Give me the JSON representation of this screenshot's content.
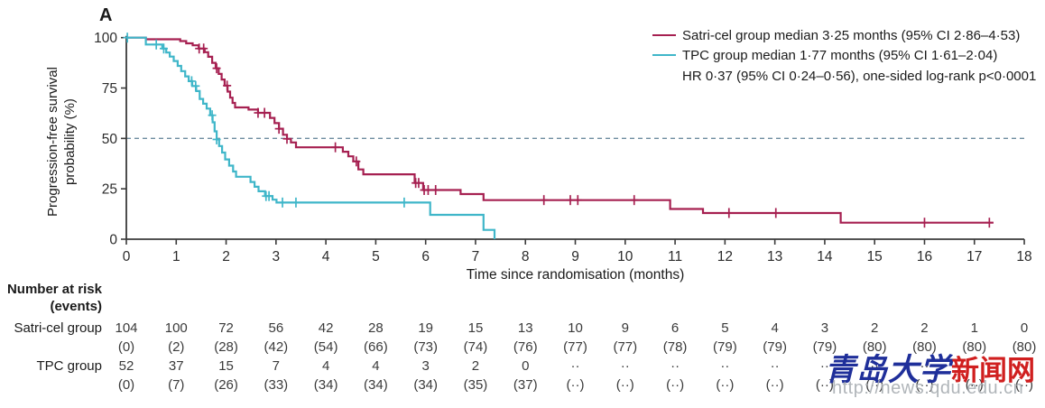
{
  "panel_label": "A",
  "legend": {
    "satri_label": "Satri-cel group median 3·25 months (95% CI 2·86–4·53)",
    "tpc_label": "TPC group median 1·77 months (95% CI 1·61–2·04)",
    "hr_note": "HR 0·37 (95% CI 0·24–0·56), one-sided log-rank p<0·0001"
  },
  "axes": {
    "y_title_line1": "Progression-free survival",
    "y_title_line2": "probability (%)",
    "x_title": "Time since randomisation (months)"
  },
  "colors": {
    "satri": "#A62051",
    "tpc": "#3FB6C9",
    "dashed_line": "#6E8CA0",
    "axis": "#3A3A3A",
    "watermark_blue": "#1F2F9A",
    "watermark_red": "#D01F1F",
    "watermark_url": "#A8ADB2"
  },
  "chart_data": {
    "type": "line",
    "subtype": "kaplan-meier-step",
    "title": "",
    "xlabel": "Time since randomisation (months)",
    "ylabel": "Progression-free survival probability (%)",
    "xlim": [
      0,
      18
    ],
    "ylim": [
      0,
      100
    ],
    "x_ticks": [
      0,
      1,
      2,
      3,
      4,
      5,
      6,
      7,
      8,
      9,
      10,
      11,
      12,
      13,
      14,
      15,
      16,
      17,
      18
    ],
    "y_ticks": [
      0,
      25,
      50,
      75,
      100
    ],
    "grid": false,
    "legend_position": "top-right",
    "reference_line_y": 50,
    "hr_annotation": "HR 0·37 (95% CI 0·24–0·56), one-sided log-rank p<0·0001",
    "series": [
      {
        "name": "Satri-cel group",
        "median_months": "3·25",
        "ci_95": "2·86–4·53",
        "color": "#A62051",
        "end_t": 17.38,
        "steps": [
          [
            0,
            100
          ],
          [
            0.39,
            99.2
          ],
          [
            1.08,
            98.3
          ],
          [
            1.2,
            97.2
          ],
          [
            1.33,
            96.2
          ],
          [
            1.45,
            94.6
          ],
          [
            1.57,
            92.8
          ],
          [
            1.64,
            90.5
          ],
          [
            1.72,
            87.5
          ],
          [
            1.79,
            84.8
          ],
          [
            1.85,
            82
          ],
          [
            1.91,
            79.2
          ],
          [
            1.97,
            76.2
          ],
          [
            2.03,
            73.2
          ],
          [
            2.08,
            70.2
          ],
          [
            2.13,
            67.6
          ],
          [
            2.18,
            65.4
          ],
          [
            2.45,
            64.3
          ],
          [
            2.64,
            62.7
          ],
          [
            2.88,
            60.2
          ],
          [
            2.97,
            57.6
          ],
          [
            3.06,
            54.8
          ],
          [
            3.14,
            51.8
          ],
          [
            3.22,
            49.8
          ],
          [
            3.3,
            48
          ],
          [
            3.4,
            45.6
          ],
          [
            4.34,
            43.4
          ],
          [
            4.45,
            41.1
          ],
          [
            4.55,
            38.6
          ],
          [
            4.65,
            34.6
          ],
          [
            4.75,
            32.2
          ],
          [
            5.78,
            27.9
          ],
          [
            5.95,
            24.4
          ],
          [
            6.7,
            22.4
          ],
          [
            7.16,
            19.4
          ],
          [
            10.9,
            15
          ],
          [
            11.56,
            13
          ],
          [
            14.32,
            8.2
          ]
        ],
        "censor_times": [
          1.46,
          1.55,
          1.81,
          2.02,
          2.64,
          2.77,
          3.06,
          3.22,
          4.19,
          4.61,
          5.8,
          5.86,
          5.97,
          6.05,
          6.2,
          8.37,
          8.9,
          9.05,
          10.18,
          12.08,
          13.02,
          16.0,
          17.3
        ]
      },
      {
        "name": "TPC group",
        "median_months": "1·77",
        "ci_95": "1·61–2·04",
        "color": "#3FB6C9",
        "end_t": 7.38,
        "steps": [
          [
            0,
            100
          ],
          [
            0.39,
            96.6
          ],
          [
            0.72,
            94.6
          ],
          [
            0.8,
            92.6
          ],
          [
            0.87,
            90.6
          ],
          [
            0.95,
            88.4
          ],
          [
            1.03,
            86
          ],
          [
            1.1,
            83.4
          ],
          [
            1.18,
            80.8
          ],
          [
            1.25,
            78.4
          ],
          [
            1.32,
            76
          ],
          [
            1.4,
            73.5
          ],
          [
            1.47,
            69.6
          ],
          [
            1.54,
            67.2
          ],
          [
            1.61,
            64.8
          ],
          [
            1.68,
            61.5
          ],
          [
            1.73,
            58
          ],
          [
            1.77,
            53.5
          ],
          [
            1.81,
            49.5
          ],
          [
            1.86,
            46.2
          ],
          [
            1.92,
            43
          ],
          [
            1.98,
            39.6
          ],
          [
            2.06,
            36.5
          ],
          [
            2.14,
            33.6
          ],
          [
            2.2,
            31
          ],
          [
            2.49,
            28.4
          ],
          [
            2.57,
            26
          ],
          [
            2.65,
            23.8
          ],
          [
            2.78,
            21.4
          ],
          [
            2.93,
            19.6
          ],
          [
            3.01,
            18.2
          ],
          [
            6.09,
            12.1
          ],
          [
            7.16,
            4.6
          ],
          [
            7.38,
            0
          ]
        ],
        "censor_times": [
          0.02,
          0.6,
          0.75,
          1.31,
          1.39,
          1.72,
          1.81,
          2.8,
          2.86,
          3.13,
          3.4,
          5.57
        ]
      }
    ]
  },
  "risk_table": {
    "header_line1": "Number at risk",
    "header_line2": "(events)",
    "rows": [
      {
        "label": "Satri-cel group",
        "counts": [
          "104",
          "100",
          "72",
          "56",
          "42",
          "28",
          "19",
          "15",
          "13",
          "10",
          "9",
          "6",
          "5",
          "4",
          "3",
          "2",
          "2",
          "1",
          "0"
        ],
        "events": [
          "(0)",
          "(2)",
          "(28)",
          "(42)",
          "(54)",
          "(66)",
          "(73)",
          "(74)",
          "(76)",
          "(77)",
          "(77)",
          "(78)",
          "(79)",
          "(79)",
          "(79)",
          "(80)",
          "(80)",
          "(80)",
          "(80)"
        ]
      },
      {
        "label": "TPC group",
        "counts": [
          "52",
          "37",
          "15",
          "7",
          "4",
          "4",
          "3",
          "2",
          "0",
          "··",
          "··",
          "··",
          "··",
          "··",
          "··",
          "··",
          "··",
          "··",
          "··"
        ],
        "events": [
          "(0)",
          "(7)",
          "(26)",
          "(33)",
          "(34)",
          "(34)",
          "(34)",
          "(35)",
          "(37)",
          "(··)",
          "(··)",
          "(··)",
          "(··)",
          "(··)",
          "(··)",
          "(··)",
          "(··)",
          "(··)",
          "(··)"
        ]
      }
    ]
  },
  "watermark": {
    "text_blue": "青岛大学",
    "text_red": "新闻网",
    "url": "http://news.qdu.edu.cn"
  }
}
